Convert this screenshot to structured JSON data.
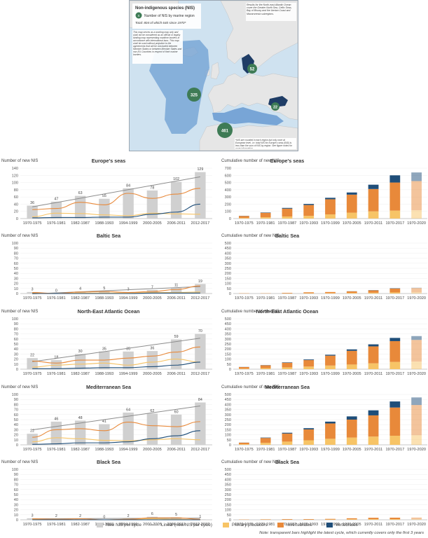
{
  "map": {
    "title": "Non-indigenous species (NIS)",
    "legend_label": "Number of NIS by marine region",
    "legend_symbol": "X",
    "total_text": "Total: 804 of which 640 since 1970*",
    "note_right": "Results for the North-east Atlantic Ocean cover the Greater North Sea, Celtic Seas, Bay of Biscay and the Iberian Coast and Macaronesia subregions.",
    "note_left": "This map serves as a working map only and shall not be considered as an official or legally binding map representing maritime borders in accordance with international laws. This map shall be used without prejudice to the agreements that will be concluded between Member States or between Member States and non-EU Countries in respect of their marine borders.",
    "note_bottom": "*NIS are counted in each region but only once at European level, i.e. total NIS for Europe's seas (640) is less than the sum of NIS by region. See figure notes for more information",
    "bubbles": [
      {
        "name": "Baltic Sea",
        "value": "52"
      },
      {
        "name": "North-East Atlantic Ocean",
        "value": "325"
      },
      {
        "name": "Black Sea",
        "value": "22"
      },
      {
        "name": "Mediterranean Sea",
        "value": "461"
      }
    ],
    "colors": {
      "sea": "#cfe2f0",
      "land": "#e6e6e6",
      "bubble": "#3e7b55",
      "region": "#6e9fd3",
      "dark_region": "#1f3d66"
    }
  },
  "left_ylabel": "Number of new NIS",
  "right_ylabel": "Cumulative number of new NIS",
  "colors": {
    "bar_gray": "#d0d0d0",
    "trend_gray": "#8c8c8c",
    "primary": "#f7c466",
    "invertebrates": "#e8893a",
    "vertebrates": "#1f4e79"
  },
  "legend": {
    "new_per_cycle": "New NIS per cycle",
    "linear": "Linear (new NIS per cycle)",
    "primary": "Primary producers",
    "invertebrates": "Invertebrates",
    "vertebrates": "Vertebrates"
  },
  "footer_note": "Note: transparent bars highlight the latest cycle, which currently covers only the first 3 years",
  "chart_data": [
    {
      "type": "bar",
      "region": "Europe's seas",
      "title": "Europe's seas",
      "categories": [
        "1970-1975",
        "1976-1981",
        "1982-1987",
        "1988-1993",
        "1994-1999",
        "2000-2005",
        "2006-2011",
        "2012-2017"
      ],
      "values": [
        36,
        47,
        63,
        55,
        84,
        78,
        102,
        129
      ],
      "ylim": [
        0,
        140
      ],
      "yticks": [
        0,
        20,
        40,
        60,
        80,
        100,
        120,
        140
      ],
      "series": [
        {
          "name": "Primary producers",
          "values": [
            5,
            15,
            14,
            10,
            8,
            15,
            13,
            12
          ]
        },
        {
          "name": "Invertebrates",
          "values": [
            25,
            28,
            45,
            38,
            70,
            56,
            68,
            84
          ]
        },
        {
          "name": "Vertebrates",
          "values": [
            2,
            3,
            3,
            4,
            4,
            12,
            18,
            40
          ]
        }
      ]
    },
    {
      "type": "bar",
      "region": "Europe's seas",
      "title": "Europe's seas",
      "categories": [
        "1970-1975",
        "1970-1981",
        "1970-1987",
        "1970-1993",
        "1970-1999",
        "1970-2005",
        "1970-2011",
        "1970-2017",
        "1970-2020"
      ],
      "ylim": [
        0,
        700
      ],
      "yticks": [
        0,
        100,
        200,
        300,
        400,
        500,
        600,
        700
      ],
      "series": [
        {
          "name": "Primary producers",
          "values": [
            8,
            18,
            28,
            38,
            58,
            82,
            100,
            110,
            115
          ]
        },
        {
          "name": "Invertebrates",
          "values": [
            28,
            62,
            110,
            150,
            210,
            250,
            310,
            390,
            405
          ]
        },
        {
          "name": "Vertebrates",
          "values": [
            2,
            5,
            10,
            15,
            20,
            30,
            60,
            100,
            120
          ]
        }
      ]
    },
    {
      "type": "bar",
      "region": "Baltic Sea",
      "title": "Baltic Sea",
      "categories": [
        "1970-1975",
        "1976-1981",
        "1982-1987",
        "1988-1993",
        "1994-1999",
        "2000-2005",
        "2006-2011",
        "2012-2017"
      ],
      "values": [
        3,
        0,
        4,
        5,
        3,
        7,
        11,
        19
      ],
      "ylim": [
        0,
        100
      ],
      "yticks": [
        0,
        10,
        20,
        30,
        40,
        50,
        60,
        70,
        80,
        90,
        100
      ],
      "series": [
        {
          "name": "Primary producers",
          "values": [
            1,
            0,
            1,
            1,
            1,
            2,
            2,
            3
          ]
        },
        {
          "name": "Invertebrates",
          "values": [
            2,
            0,
            3,
            4,
            2,
            4,
            8,
            15
          ]
        },
        {
          "name": "Vertebrates",
          "values": [
            0,
            0,
            0,
            0,
            0,
            1,
            1,
            1
          ]
        }
      ]
    },
    {
      "type": "bar",
      "region": "Baltic Sea",
      "title": "Baltic Sea",
      "categories": [
        "1970-1975",
        "1970-1981",
        "1970-1987",
        "1970-1993",
        "1970-1999",
        "1970-2005",
        "1970-2011",
        "1970-2017",
        "1970-2020"
      ],
      "ylim": [
        0,
        500
      ],
      "yticks": [
        0,
        50,
        100,
        150,
        200,
        250,
        300,
        350,
        400,
        450,
        500
      ],
      "series": [
        {
          "name": "Primary producers",
          "values": [
            1,
            1,
            2,
            3,
            4,
            6,
            8,
            11,
            12
          ]
        },
        {
          "name": "Invertebrates",
          "values": [
            2,
            2,
            5,
            9,
            11,
            15,
            23,
            38,
            42
          ]
        },
        {
          "name": "Vertebrates",
          "values": [
            0,
            0,
            0,
            0,
            0,
            1,
            2,
            3,
            3
          ]
        }
      ]
    },
    {
      "type": "bar",
      "region": "North-East Atlantic Ocean",
      "title": "North-East Atlantic Ocean",
      "categories": [
        "1970-1975",
        "1976-1981",
        "1982-1987",
        "1988-1993",
        "1994-1999",
        "2000-2005",
        "2006-2011",
        "2012-2017"
      ],
      "values": [
        22,
        18,
        30,
        35,
        35,
        36,
        59,
        70
      ],
      "ylim": [
        0,
        100
      ],
      "yticks": [
        0,
        10,
        20,
        30,
        40,
        50,
        60,
        70,
        80,
        90,
        100
      ],
      "series": [
        {
          "name": "Primary producers",
          "values": [
            4,
            8,
            10,
            12,
            8,
            14,
            20,
            14
          ]
        },
        {
          "name": "Invertebrates",
          "values": [
            16,
            12,
            18,
            18,
            22,
            26,
            34,
            44
          ]
        },
        {
          "name": "Vertebrates",
          "values": [
            1,
            1,
            2,
            3,
            3,
            5,
            8,
            14
          ]
        }
      ]
    },
    {
      "type": "bar",
      "region": "North-East Atlantic Ocean",
      "title": "North-East Atlantic Ocean",
      "categories": [
        "1970-1975",
        "1970-1981",
        "1970-1987",
        "1970-1993",
        "1970-1999",
        "1970-2005",
        "1970-2011",
        "1970-2017",
        "1970-2020"
      ],
      "ylim": [
        0,
        500
      ],
      "yticks": [
        0,
        50,
        100,
        150,
        200,
        250,
        300,
        350,
        400,
        450,
        500
      ],
      "series": [
        {
          "name": "Primary producers",
          "values": [
            5,
            10,
            18,
            26,
            36,
            46,
            58,
            72,
            75
          ]
        },
        {
          "name": "Invertebrates",
          "values": [
            16,
            28,
            46,
            64,
            98,
            136,
            168,
            206,
            215
          ]
        },
        {
          "name": "Vertebrates",
          "values": [
            1,
            2,
            4,
            6,
            9,
            14,
            20,
            32,
            38
          ]
        }
      ]
    },
    {
      "type": "bar",
      "region": "Mediterranean Sea",
      "title": "Mediterranean Sea",
      "categories": [
        "1970-1975",
        "1976-1981",
        "1982-1987",
        "1988-1993",
        "1994-1999",
        "2000-2005",
        "2006-2011",
        "2012-2017"
      ],
      "values": [
        22,
        46,
        48,
        41,
        64,
        62,
        60,
        84
      ],
      "ylim": [
        0,
        100
      ],
      "yticks": [
        0,
        10,
        20,
        30,
        40,
        50,
        60,
        70,
        80,
        90,
        100
      ],
      "series": [
        {
          "name": "Primary producers",
          "values": [
            6,
            14,
            12,
            9,
            8,
            10,
            12,
            10
          ]
        },
        {
          "name": "Invertebrates",
          "values": [
            15,
            30,
            32,
            28,
            45,
            38,
            36,
            46
          ]
        },
        {
          "name": "Vertebrates",
          "values": [
            1,
            2,
            4,
            4,
            6,
            12,
            18,
            28
          ]
        }
      ]
    },
    {
      "type": "bar",
      "region": "Mediterranean Sea",
      "title": "Mediterranean Sea",
      "categories": [
        "1970-1975",
        "1970-1981",
        "1970-1987",
        "1970-1993",
        "1970-1999",
        "1970-2005",
        "1970-2011",
        "1970-2017",
        "1970-2020"
      ],
      "ylim": [
        0,
        500
      ],
      "yticks": [
        0,
        50,
        100,
        150,
        200,
        250,
        300,
        350,
        400,
        450,
        500
      ],
      "series": [
        {
          "name": "Primary producers",
          "values": [
            6,
            20,
            32,
            45,
            60,
            72,
            82,
            90,
            95
          ]
        },
        {
          "name": "Invertebrates",
          "values": [
            15,
            48,
            80,
            108,
            152,
            178,
            210,
            280,
            300
          ]
        },
        {
          "name": "Vertebrates",
          "values": [
            1,
            4,
            8,
            12,
            18,
            32,
            50,
            60,
            75
          ]
        }
      ]
    },
    {
      "type": "bar",
      "region": "Black Sea",
      "title": "Black Sea",
      "categories": [
        "1970-1975",
        "1976-1981",
        "1982-1987",
        "1988-1993",
        "1994-1999",
        "2000-2005",
        "2006-2011",
        "2012-2017"
      ],
      "values": [
        3,
        2,
        2,
        0,
        2,
        6,
        5,
        1
      ],
      "ylim": [
        0,
        100
      ],
      "yticks": [
        0,
        10,
        20,
        30,
        40,
        50,
        60,
        70,
        80,
        90,
        100
      ],
      "series": [
        {
          "name": "Primary producers",
          "values": [
            1,
            1,
            0,
            0,
            1,
            2,
            1,
            0
          ]
        },
        {
          "name": "Invertebrates",
          "values": [
            2,
            1,
            2,
            0,
            1,
            4,
            4,
            1
          ]
        },
        {
          "name": "Vertebrates",
          "values": [
            0,
            0,
            0,
            0,
            0,
            0,
            0,
            0
          ]
        }
      ]
    },
    {
      "type": "bar",
      "region": "Black Sea",
      "title": "Black Sea",
      "categories": [
        "1970-1975",
        "1970-1981",
        "1970-1987",
        "1970-1993",
        "1970-1999",
        "1970-2005",
        "1970-2011",
        "1970-2017",
        "1970-2020"
      ],
      "ylim": [
        0,
        500
      ],
      "yticks": [
        0,
        50,
        100,
        150,
        200,
        250,
        300,
        350,
        400,
        450,
        500
      ],
      "series": [
        {
          "name": "Primary producers",
          "values": [
            1,
            2,
            2,
            2,
            3,
            5,
            6,
            6,
            6
          ]
        },
        {
          "name": "Invertebrates",
          "values": [
            2,
            3,
            5,
            5,
            6,
            10,
            14,
            15,
            16
          ]
        },
        {
          "name": "Vertebrates",
          "values": [
            0,
            0,
            0,
            0,
            0,
            0,
            0,
            0,
            0
          ]
        }
      ]
    }
  ]
}
